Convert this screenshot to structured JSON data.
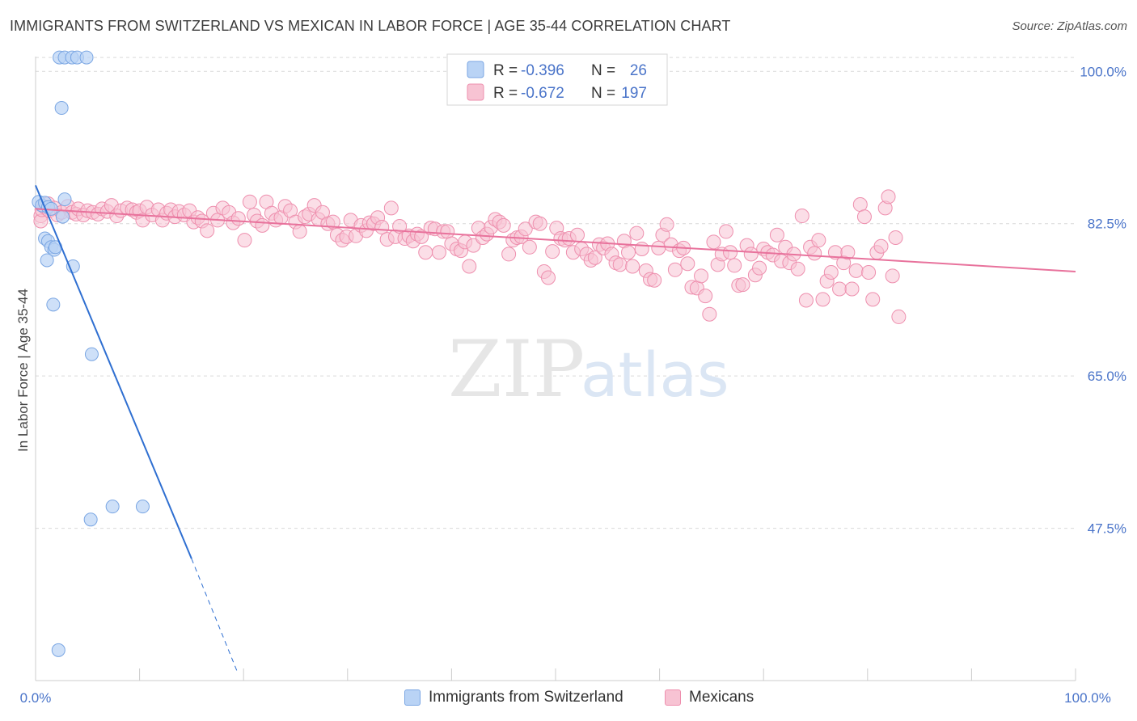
{
  "header": {
    "title": "IMMIGRANTS FROM SWITZERLAND VS MEXICAN IN LABOR FORCE | AGE 35-44 CORRELATION CHART",
    "source": "Source: ZipAtlas.com"
  },
  "watermark": {
    "zip": "ZIP",
    "atlas": "atlas"
  },
  "colors": {
    "blue_fill": "#b9d3f5",
    "blue_stroke": "#7aa6e3",
    "blue_line": "#2f6fd1",
    "pink_fill": "#f7c3d3",
    "pink_stroke": "#ee8fae",
    "pink_line": "#e8729c",
    "tick": "#4a74c9",
    "grid": "#d9d9d9"
  },
  "chart_data": {
    "type": "scatter",
    "title": "IMMIGRANTS FROM SWITZERLAND VS MEXICAN IN LABOR FORCE | AGE 35-44 CORRELATION CHART",
    "xlabel": "",
    "ylabel": "In Labor Force | Age 35-44",
    "xlim": [
      0,
      100
    ],
    "ylim": [
      30,
      101.7
    ],
    "x_tick_labels": [
      "0.0%",
      "100.0%"
    ],
    "y_ticks": [
      100.0,
      82.5,
      65.0,
      47.5
    ],
    "y_tick_labels": [
      "100.0%",
      "82.5%",
      "65.0%",
      "47.5%"
    ],
    "legend": {
      "position": "top-center",
      "rows": [
        {
          "r_label": "R =",
          "r_value": "-0.396",
          "n_label": "N =",
          "n_value": "26"
        },
        {
          "r_label": "R =",
          "r_value": "-0.672",
          "n_label": "N =",
          "n_value": "197"
        }
      ]
    },
    "bottom_legend": [
      "Immigrants from Switzerland",
      "Mexicans"
    ],
    "series": [
      {
        "name": "Immigrants from Switzerland",
        "r": -0.396,
        "n": 26,
        "trend": {
          "x0": 0,
          "y0": 86.9,
          "x1": 15,
          "y1": 44.0,
          "dash_to_x": 19.4,
          "dash_to_y": 31.0
        },
        "points": [
          [
            2.3,
            101.6
          ],
          [
            2.8,
            101.6
          ],
          [
            3.5,
            101.6
          ],
          [
            4.0,
            101.6
          ],
          [
            4.9,
            101.6
          ],
          [
            2.5,
            95.8
          ],
          [
            0.3,
            85.0
          ],
          [
            0.6,
            84.6
          ],
          [
            0.9,
            84.9
          ],
          [
            1.2,
            84.4
          ],
          [
            1.5,
            84.2
          ],
          [
            2.6,
            83.3
          ],
          [
            2.8,
            85.3
          ],
          [
            0.9,
            80.8
          ],
          [
            1.2,
            80.5
          ],
          [
            1.5,
            79.8
          ],
          [
            1.8,
            79.5
          ],
          [
            1.9,
            79.8
          ],
          [
            1.1,
            78.3
          ],
          [
            3.6,
            77.6
          ],
          [
            1.7,
            73.2
          ],
          [
            5.4,
            67.5
          ],
          [
            7.4,
            50.0
          ],
          [
            10.3,
            50.0
          ],
          [
            5.3,
            48.5
          ],
          [
            2.2,
            33.5
          ]
        ]
      },
      {
        "name": "Mexicans",
        "r": -0.672,
        "n": 197,
        "trend": {
          "x0": 0,
          "y0": 84.2,
          "x1": 100,
          "y1": 77.0
        },
        "points": [
          [
            0.5,
            83.4
          ],
          [
            0.5,
            82.8
          ],
          [
            0.6,
            84.1
          ],
          [
            0.9,
            84.4
          ],
          [
            1.2,
            84.8
          ],
          [
            1.3,
            84.0
          ],
          [
            1.8,
            84.3
          ],
          [
            2.1,
            83.5
          ],
          [
            2.5,
            83.8
          ],
          [
            3.1,
            84.5
          ],
          [
            3.5,
            83.8
          ],
          [
            3.9,
            83.6
          ],
          [
            4.1,
            84.2
          ],
          [
            4.6,
            83.5
          ],
          [
            5.0,
            84.0
          ],
          [
            5.5,
            83.8
          ],
          [
            6.0,
            83.6
          ],
          [
            6.4,
            84.2
          ],
          [
            6.9,
            83.9
          ],
          [
            7.3,
            84.6
          ],
          [
            7.8,
            83.4
          ],
          [
            8.2,
            84.0
          ],
          [
            8.8,
            84.3
          ],
          [
            9.3,
            84.1
          ],
          [
            9.7,
            83.8
          ],
          [
            10.0,
            84.0
          ],
          [
            10.3,
            82.9
          ],
          [
            10.7,
            84.4
          ],
          [
            11.2,
            83.5
          ],
          [
            11.8,
            84.1
          ],
          [
            12.2,
            82.9
          ],
          [
            12.6,
            83.7
          ],
          [
            13.0,
            84.1
          ],
          [
            13.4,
            83.3
          ],
          [
            13.8,
            83.9
          ],
          [
            14.3,
            83.5
          ],
          [
            14.8,
            84.0
          ],
          [
            15.2,
            82.7
          ],
          [
            15.6,
            83.2
          ],
          [
            16.0,
            82.8
          ],
          [
            16.5,
            81.7
          ],
          [
            17.1,
            83.7
          ],
          [
            17.5,
            82.9
          ],
          [
            18.0,
            84.3
          ],
          [
            18.6,
            83.8
          ],
          [
            19.0,
            82.6
          ],
          [
            19.5,
            83.1
          ],
          [
            20.1,
            80.6
          ],
          [
            20.6,
            85.0
          ],
          [
            21.0,
            83.5
          ],
          [
            21.3,
            82.8
          ],
          [
            21.8,
            82.3
          ],
          [
            22.2,
            85.0
          ],
          [
            22.7,
            83.7
          ],
          [
            23.1,
            82.9
          ],
          [
            23.6,
            83.2
          ],
          [
            24.0,
            84.5
          ],
          [
            24.5,
            84.0
          ],
          [
            25.0,
            82.7
          ],
          [
            25.4,
            81.6
          ],
          [
            25.9,
            83.3
          ],
          [
            26.3,
            83.6
          ],
          [
            26.8,
            84.6
          ],
          [
            27.2,
            83.0
          ],
          [
            27.6,
            83.8
          ],
          [
            28.1,
            82.5
          ],
          [
            28.6,
            82.7
          ],
          [
            29.0,
            81.2
          ],
          [
            29.5,
            80.6
          ],
          [
            29.9,
            81.0
          ],
          [
            30.3,
            82.9
          ],
          [
            30.8,
            81.1
          ],
          [
            31.3,
            82.3
          ],
          [
            31.8,
            81.7
          ],
          [
            32.1,
            82.6
          ],
          [
            32.5,
            82.5
          ],
          [
            32.9,
            83.2
          ],
          [
            33.3,
            82.1
          ],
          [
            33.8,
            80.7
          ],
          [
            34.2,
            84.3
          ],
          [
            34.6,
            81.0
          ],
          [
            35.0,
            82.2
          ],
          [
            35.5,
            80.8
          ],
          [
            35.9,
            81.1
          ],
          [
            36.3,
            80.5
          ],
          [
            36.7,
            81.3
          ],
          [
            37.1,
            81.0
          ],
          [
            37.5,
            79.2
          ],
          [
            38.0,
            82.0
          ],
          [
            38.4,
            81.9
          ],
          [
            38.8,
            79.2
          ],
          [
            39.2,
            81.6
          ],
          [
            39.6,
            81.6
          ],
          [
            40.0,
            80.2
          ],
          [
            40.5,
            79.6
          ],
          [
            40.9,
            79.4
          ],
          [
            41.3,
            80.4
          ],
          [
            41.7,
            77.6
          ],
          [
            42.1,
            80.0
          ],
          [
            42.6,
            82.0
          ],
          [
            43.0,
            80.9
          ],
          [
            43.4,
            81.3
          ],
          [
            43.8,
            82.1
          ],
          [
            44.2,
            83.0
          ],
          [
            44.6,
            82.7
          ],
          [
            45.0,
            82.3
          ],
          [
            45.5,
            79.0
          ],
          [
            45.9,
            80.6
          ],
          [
            46.3,
            80.9
          ],
          [
            46.7,
            81.0
          ],
          [
            47.1,
            81.9
          ],
          [
            47.5,
            79.8
          ],
          [
            48.1,
            82.7
          ],
          [
            48.5,
            82.5
          ],
          [
            48.9,
            77.0
          ],
          [
            49.3,
            76.3
          ],
          [
            49.7,
            79.3
          ],
          [
            50.1,
            82.0
          ],
          [
            50.5,
            80.8
          ],
          [
            50.9,
            80.6
          ],
          [
            51.3,
            80.8
          ],
          [
            51.7,
            79.2
          ],
          [
            52.1,
            81.2
          ],
          [
            52.5,
            79.6
          ],
          [
            53.0,
            79.0
          ],
          [
            53.4,
            78.3
          ],
          [
            53.8,
            78.6
          ],
          [
            54.2,
            80.1
          ],
          [
            54.6,
            79.7
          ],
          [
            55.0,
            80.2
          ],
          [
            55.4,
            79.0
          ],
          [
            55.8,
            78.0
          ],
          [
            56.2,
            77.8
          ],
          [
            56.6,
            80.5
          ],
          [
            57.0,
            79.2
          ],
          [
            57.4,
            77.6
          ],
          [
            57.8,
            81.4
          ],
          [
            58.3,
            79.6
          ],
          [
            58.7,
            77.1
          ],
          [
            59.1,
            76.1
          ],
          [
            59.5,
            76.0
          ],
          [
            59.9,
            79.7
          ],
          [
            60.3,
            81.2
          ],
          [
            60.7,
            82.4
          ],
          [
            61.1,
            80.1
          ],
          [
            61.5,
            77.2
          ],
          [
            61.9,
            79.4
          ],
          [
            62.3,
            79.7
          ],
          [
            62.7,
            77.9
          ],
          [
            63.1,
            75.2
          ],
          [
            63.6,
            75.1
          ],
          [
            64.0,
            76.5
          ],
          [
            64.4,
            74.2
          ],
          [
            64.8,
            72.1
          ],
          [
            65.2,
            80.4
          ],
          [
            65.6,
            77.8
          ],
          [
            66.0,
            79.0
          ],
          [
            66.4,
            81.6
          ],
          [
            66.8,
            79.2
          ],
          [
            67.2,
            77.7
          ],
          [
            67.6,
            75.4
          ],
          [
            68.0,
            75.5
          ],
          [
            68.4,
            80.0
          ],
          [
            68.8,
            79.0
          ],
          [
            69.2,
            76.6
          ],
          [
            69.6,
            77.4
          ],
          [
            70.0,
            79.6
          ],
          [
            70.4,
            79.2
          ],
          [
            70.9,
            78.9
          ],
          [
            71.3,
            81.2
          ],
          [
            71.7,
            78.2
          ],
          [
            72.1,
            79.8
          ],
          [
            72.5,
            78.0
          ],
          [
            72.9,
            79.0
          ],
          [
            73.3,
            77.3
          ],
          [
            73.7,
            83.4
          ],
          [
            74.1,
            73.7
          ],
          [
            74.5,
            79.8
          ],
          [
            74.9,
            79.1
          ],
          [
            75.3,
            80.6
          ],
          [
            75.7,
            73.8
          ],
          [
            76.1,
            75.9
          ],
          [
            76.5,
            76.9
          ],
          [
            76.9,
            79.2
          ],
          [
            77.3,
            75.0
          ],
          [
            77.7,
            78.0
          ],
          [
            78.1,
            79.2
          ],
          [
            78.5,
            75.0
          ],
          [
            78.9,
            77.1
          ],
          [
            79.3,
            84.7
          ],
          [
            79.7,
            83.3
          ],
          [
            80.1,
            76.9
          ],
          [
            80.5,
            73.8
          ],
          [
            80.9,
            79.2
          ],
          [
            81.3,
            79.9
          ],
          [
            81.7,
            84.3
          ],
          [
            82.0,
            85.6
          ],
          [
            82.4,
            76.5
          ],
          [
            82.7,
            80.9
          ],
          [
            83.0,
            71.8
          ]
        ]
      }
    ]
  }
}
